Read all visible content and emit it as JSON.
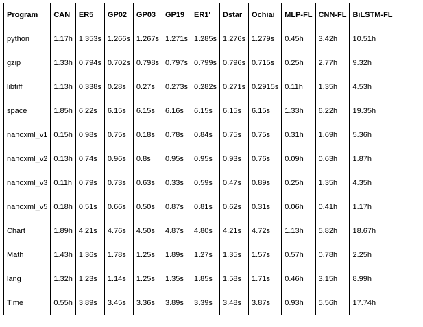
{
  "table": {
    "headers": [
      "Program",
      "CAN",
      "ER5",
      "GP02",
      "GP03",
      "GP19",
      "ER1'",
      "Dstar",
      "Ochiai",
      "MLP-FL",
      "CNN-FL",
      "BiLSTM-FL"
    ],
    "rows": [
      [
        "python",
        "1.17h",
        "1.353s",
        "1.266s",
        "1.267s",
        "1.271s",
        "1.285s",
        "1.276s",
        "1.279s",
        "0.45h",
        "3.42h",
        "10.51h"
      ],
      [
        "gzip",
        "1.33h",
        "0.794s",
        "0.702s",
        "0.798s",
        "0.797s",
        "0.799s",
        "0.796s",
        "0.715s",
        "0.25h",
        "2.77h",
        "9.32h"
      ],
      [
        "libtiff",
        "1.13h",
        "0.338s",
        "0.28s",
        "0.27s",
        "0.273s",
        "0.282s",
        "0.271s",
        "0.2915s",
        "0.11h",
        "1.35h",
        "4.53h"
      ],
      [
        "space",
        "1.85h",
        "6.22s",
        "6.15s",
        "6.15s",
        "6.16s",
        "6.15s",
        "6.15s",
        "6.15s",
        "1.33h",
        "6.22h",
        "19.35h"
      ],
      [
        "nanoxml_v1",
        "0.15h",
        "0.98s",
        "0.75s",
        "0.18s",
        "0.78s",
        "0.84s",
        "0.75s",
        "0.75s",
        "0.31h",
        "1.69h",
        "5.36h"
      ],
      [
        "nanoxml_v2",
        "0.13h",
        "0.74s",
        "0.96s",
        "0.8s",
        "0.95s",
        "0.95s",
        "0.93s",
        "0.76s",
        "0.09h",
        "0.63h",
        "1.87h"
      ],
      [
        "nanoxml_v3",
        "0.11h",
        "0.79s",
        "0.73s",
        "0.63s",
        "0.33s",
        "0.59s",
        "0.47s",
        "0.89s",
        "0.25h",
        "1.35h",
        "4.35h"
      ],
      [
        "nanoxml_v5",
        "0.18h",
        "0.51s",
        "0.66s",
        "0.50s",
        "0.87s",
        "0.81s",
        "0.62s",
        "0.31s",
        "0.06h",
        "0.41h",
        "1.17h"
      ],
      [
        "Chart",
        "1.89h",
        "4.21s",
        "4.76s",
        "4.50s",
        "4.87s",
        "4.80s",
        "4.21s",
        "4.72s",
        "1.13h",
        "5.82h",
        "18.67h"
      ],
      [
        "Math",
        "1.43h",
        "1.36s",
        "1.78s",
        "1.25s",
        "1.89s",
        "1.27s",
        "1.35s",
        "1.57s",
        "0.57h",
        "0.78h",
        "2.25h"
      ],
      [
        "lang",
        "1.32h",
        "1.23s",
        "1.14s",
        "1.25s",
        "1.35s",
        "1.85s",
        "1.58s",
        "1.71s",
        "0.46h",
        "3.15h",
        "8.99h"
      ],
      [
        "Time",
        "0.55h",
        "3.89s",
        "3.45s",
        "3.36s",
        "3.89s",
        "3.39s",
        "3.48s",
        "3.87s",
        "0.93h",
        "5.56h",
        "17.74h"
      ]
    ]
  }
}
